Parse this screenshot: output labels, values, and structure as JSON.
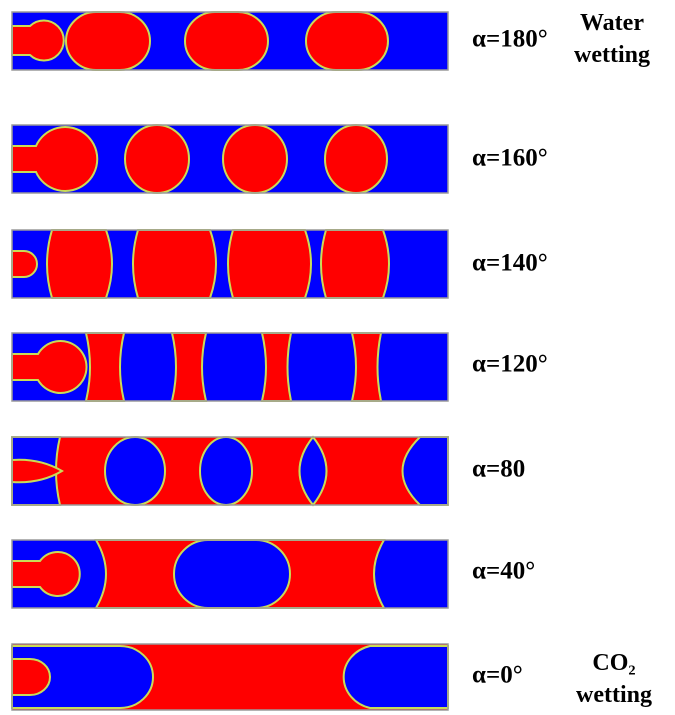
{
  "panels": [
    {
      "label": "α=180°"
    },
    {
      "label": "α=160°"
    },
    {
      "label": "α=140°"
    },
    {
      "label": "α=120°"
    },
    {
      "label": "α=80"
    },
    {
      "label": "α=40°"
    },
    {
      "label": "α=0°"
    }
  ],
  "notes": {
    "top": [
      "Water",
      "wetting"
    ],
    "bottom": [
      "CO₂",
      "wetting"
    ]
  }
}
